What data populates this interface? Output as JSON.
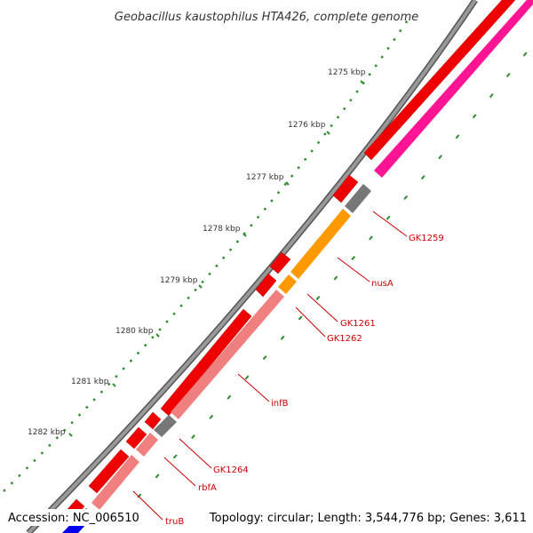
{
  "title": "Geobacillus kaustophilus HTA426, complete genome",
  "footer": {
    "accession": "Accession: NC_006510",
    "summary": "Topology: circular; Length: 3,544,776 bp; Genes: 3,611"
  },
  "ticks": [
    "1275 kbp",
    "1276 kbp",
    "1277 kbp",
    "1278 kbp",
    "1279 kbp",
    "1280 kbp",
    "1281 kbp",
    "1282 kbp"
  ],
  "gene_labels": [
    "GK1259",
    "nusA",
    "GK1261",
    "GK1262",
    "infB",
    "GK1264",
    "rbfA",
    "truB"
  ],
  "colors": {
    "backbone": "#888888",
    "cds": "#ee0000",
    "gene_red": "#ff0000",
    "gene_pink": "#f08080",
    "gene_magenta": "#ff1493",
    "gene_orange": "#ff9900",
    "gene_gray": "#777777",
    "gene_blue": "#0000ee",
    "tick_green": "#2e8b2e",
    "label": "#cc0000"
  }
}
